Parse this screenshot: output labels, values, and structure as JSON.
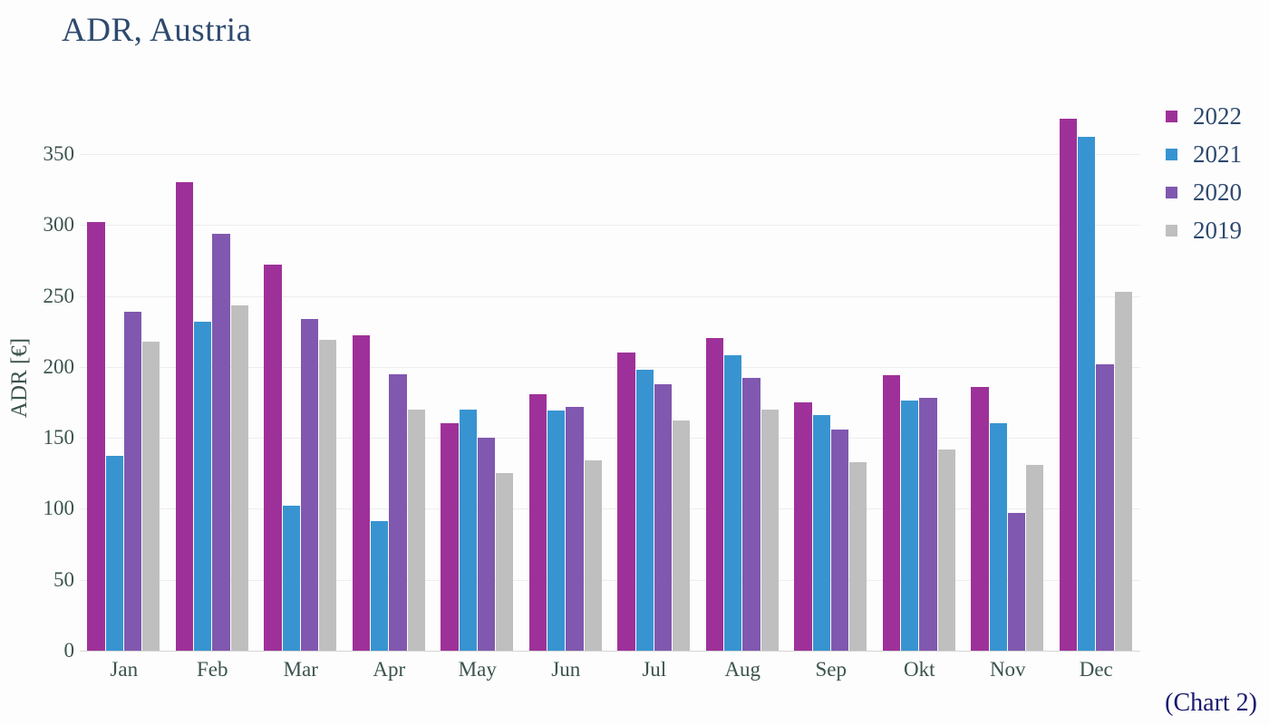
{
  "page": {
    "title": "ADR, Austria",
    "footnote": "(Chart 2)"
  },
  "chart_data": {
    "type": "bar",
    "title": "ADR, Austria",
    "xlabel": "",
    "ylabel": "ADR [€]",
    "ylim": [
      0,
      350
    ],
    "ytick_step": 50,
    "yticks": [
      0,
      50,
      100,
      150,
      200,
      250,
      300,
      350
    ],
    "grid": true,
    "legend_position": "right",
    "note": "(Chart 2)",
    "categories": [
      "Jan",
      "Feb",
      "Mar",
      "Apr",
      "May",
      "Jun",
      "Jul",
      "Aug",
      "Sep",
      "Okt",
      "Nov",
      "Dec"
    ],
    "series": [
      {
        "name": "2022",
        "color": "#9e3199",
        "values": [
          302,
          330,
          272,
          222,
          160,
          181,
          210,
          220,
          175,
          194,
          186,
          375
        ]
      },
      {
        "name": "2021",
        "color": "#3794d1",
        "values": [
          137,
          232,
          102,
          91,
          170,
          169,
          198,
          208,
          166,
          176,
          160,
          362
        ]
      },
      {
        "name": "2020",
        "color": "#8058af",
        "values": [
          239,
          294,
          234,
          195,
          150,
          172,
          188,
          192,
          156,
          178,
          97,
          202
        ]
      },
      {
        "name": "2019",
        "color": "#bfbfbf",
        "values": [
          218,
          243,
          219,
          170,
          125,
          134,
          162,
          170,
          133,
          142,
          131,
          253
        ]
      }
    ]
  },
  "colors": {
    "title_text": "#2e4a6e",
    "axis_text": "#3b534e",
    "legend_text": "#2e4a6e",
    "note_text": "#191970",
    "gridline": "#ededed",
    "baseline": "#d6d6d6",
    "background": "#fdfdfd"
  }
}
